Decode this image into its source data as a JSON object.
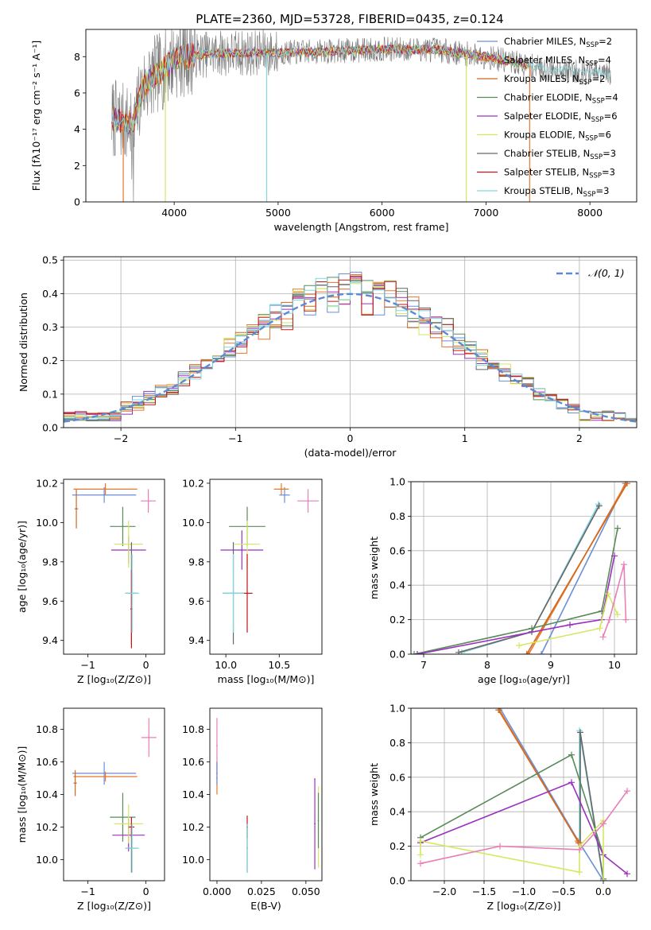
{
  "title": "PLATE=2360, MJD=53728, FIBERID=0435, z=0.124",
  "colors": {
    "chabrier_miles": "#6a8ed8",
    "salpeter_miles": "#e8762b",
    "kroupa_miles": "#d2691e",
    "chabrier_elodie": "#5a8a5a",
    "salpeter_elodie": "#9b30c0",
    "kroupa_elodie": "#d4e860",
    "chabrier_stelib": "#666666",
    "salpeter_stelib": "#c01818",
    "kroupa_stelib": "#7fd7df",
    "pink": "#e87fb8",
    "normal_curve": "#5b8ad6"
  },
  "chart_data": [
    {
      "id": "spectrum",
      "type": "line",
      "xlabel": "wavelength [Angstrom, rest frame]",
      "ylabel": "Flux [fλ10⁻¹⁷ erg cm⁻² s⁻¹ A⁻¹]",
      "xlim": [
        3150,
        8450
      ],
      "ylim": [
        0,
        9.5
      ],
      "xticks": [
        "4000",
        "5000",
        "6000",
        "7000",
        "8000"
      ],
      "yticks": [
        "0",
        "2",
        "4",
        "6",
        "8"
      ],
      "legend_position": "top-right",
      "legend": [
        "Chabrier MILES, N_SSP=2",
        "Salpeter MILES, N_SSP=4",
        "Kroupa MILES, N_SSP=2",
        "Chabrier ELODIE, N_SSP=4",
        "Salpeter ELODIE, N_SSP=6",
        "Kroupa ELODIE, N_SSP=6",
        "Chabrier STELIB, N_SSP=3",
        "Salpeter STELIB, N_SSP=3",
        "Kroupa STELIB, N_SSP=3"
      ],
      "continuum": {
        "x": [
          3400,
          3500,
          3600,
          3700,
          3800,
          3900,
          4000,
          4200,
          4500,
          5000,
          5500,
          6000,
          6500,
          7000,
          7500,
          8000,
          8200
        ],
        "y": [
          4.6,
          4.4,
          4.3,
          6.3,
          6.9,
          7.3,
          7.9,
          8.1,
          8.2,
          8.2,
          8.3,
          8.4,
          8.4,
          8.0,
          7.4,
          7.1,
          7.0
        ]
      }
    },
    {
      "id": "residuals",
      "type": "histogram",
      "xlabel": "(data-model)/error",
      "ylabel": "Normed distribution",
      "xlim": [
        -2.5,
        2.5
      ],
      "ylim": [
        0,
        0.51
      ],
      "xticks": [
        "−2",
        "−1",
        "0",
        "1",
        "2"
      ],
      "yticks": [
        "0.0",
        "0.1",
        "0.2",
        "0.3",
        "0.4",
        "0.5"
      ],
      "bin_width": 0.1,
      "legend": "𝒩(0, 1)",
      "legend_position": "top-right",
      "grid": true
    },
    {
      "id": "age_vs_Z",
      "type": "scatter",
      "xlabel": "Z [log₁₀(Z/Z⊙)]",
      "ylabel": "age  [log₁₀(age/yr)]",
      "xlim": [
        -1.42,
        0.32
      ],
      "ylim": [
        9.33,
        10.22
      ],
      "xticks": [
        "−1",
        "0"
      ],
      "yticks": [
        "9.4",
        "9.6",
        "9.8",
        "10.0",
        "10.2"
      ],
      "points": [
        {
          "c": "chabrier_miles",
          "x": -0.72,
          "y": 10.14,
          "dx": 0.55,
          "dy": 0.04
        },
        {
          "c": "salpeter_miles",
          "x": -0.7,
          "y": 10.17,
          "dx": 0.55,
          "dy": 0.03
        },
        {
          "c": "kroupa_miles",
          "x": -1.2,
          "y": 10.07,
          "dx": 0.03,
          "dy": 0.1
        },
        {
          "c": "chabrier_elodie",
          "x": -0.4,
          "y": 9.98,
          "dx": 0.22,
          "dy": 0.1
        },
        {
          "c": "salpeter_elodie",
          "x": -0.3,
          "y": 9.86,
          "dx": 0.3,
          "dy": 0.07
        },
        {
          "c": "kroupa_elodie",
          "x": -0.3,
          "y": 9.89,
          "dx": 0.25,
          "dy": 0.12
        },
        {
          "c": "chabrier_stelib",
          "x": -0.25,
          "y": 9.64,
          "dx": 0.1,
          "dy": 0.26
        },
        {
          "c": "salpeter_stelib",
          "x": -0.25,
          "y": 9.56,
          "dx": 0.02,
          "dy": 0.2
        },
        {
          "c": "kroupa_stelib",
          "x": -0.24,
          "y": 9.64,
          "dx": 0.12,
          "dy": 0.2
        },
        {
          "c": "pink",
          "x": 0.04,
          "y": 10.11,
          "dx": 0.13,
          "dy": 0.06
        }
      ]
    },
    {
      "id": "age_vs_mass",
      "type": "scatter",
      "xlabel": "mass [log₁₀(M/M⊙)]",
      "ylabel": "",
      "xlim": [
        9.85,
        10.9
      ],
      "ylim": [
        9.33,
        10.22
      ],
      "xticks": [
        "10.0",
        "10.5"
      ],
      "yticks": [
        "9.4",
        "9.6",
        "9.8",
        "10.0",
        "10.2"
      ],
      "points": [
        {
          "c": "chabrier_miles",
          "x": 10.55,
          "y": 10.14,
          "dx": 0.05,
          "dy": 0.04
        },
        {
          "c": "salpeter_miles",
          "x": 10.52,
          "y": 10.17,
          "dx": 0.07,
          "dy": 0.03
        },
        {
          "c": "chabrier_elodie",
          "x": 10.2,
          "y": 9.98,
          "dx": 0.17,
          "dy": 0.1
        },
        {
          "c": "salpeter_elodie",
          "x": 10.15,
          "y": 9.86,
          "dx": 0.2,
          "dy": 0.1
        },
        {
          "c": "kroupa_elodie",
          "x": 10.2,
          "y": 9.89,
          "dx": 0.12,
          "dy": 0.12
        },
        {
          "c": "chabrier_stelib",
          "x": 10.07,
          "y": 9.64,
          "dx": 0.1,
          "dy": 0.26
        },
        {
          "c": "salpeter_stelib",
          "x": 10.2,
          "y": 9.64,
          "dx": 0.05,
          "dy": 0.2
        },
        {
          "c": "kroupa_stelib",
          "x": 10.07,
          "y": 9.64,
          "dx": 0.1,
          "dy": 0.2
        },
        {
          "c": "pink",
          "x": 10.77,
          "y": 10.11,
          "dx": 0.1,
          "dy": 0.06
        }
      ]
    },
    {
      "id": "massweight_vs_age",
      "type": "line",
      "xlabel": "age  [log₁₀(age/yr)]",
      "ylabel": "mass weight",
      "xlim": [
        6.8,
        10.35
      ],
      "ylim": [
        0,
        1
      ],
      "xticks": [
        "7",
        "8",
        "9",
        "10"
      ],
      "yticks": [
        "0.0",
        "0.2",
        "0.4",
        "0.6",
        "0.8",
        "1.0"
      ],
      "grid": true,
      "series": [
        {
          "c": "kroupa_stelib",
          "x": [
            7.6,
            8.7,
            9.75
          ],
          "y": [
            0.01,
            0.13,
            0.87
          ]
        },
        {
          "c": "chabrier_stelib",
          "x": [
            7.55,
            8.7,
            9.76
          ],
          "y": [
            0.01,
            0.13,
            0.86
          ]
        },
        {
          "c": "chabrier_miles",
          "x": [
            8.85,
            10.17
          ],
          "y": [
            0.0,
            0.99
          ]
        },
        {
          "c": "salpeter_miles",
          "x": [
            8.65,
            10.18
          ],
          "y": [
            0.0,
            0.99
          ]
        },
        {
          "c": "kroupa_miles",
          "x": [
            8.62,
            10.2
          ],
          "y": [
            0.0,
            0.99
          ]
        },
        {
          "c": "chabrier_elodie",
          "x": [
            6.85,
            8.7,
            9.8,
            10.05
          ],
          "y": [
            0.0,
            0.15,
            0.25,
            0.73
          ]
        },
        {
          "c": "salpeter_elodie",
          "x": [
            6.9,
            9.3,
            9.8,
            10.0
          ],
          "y": [
            0.0,
            0.17,
            0.2,
            0.57
          ]
        },
        {
          "c": "kroupa_elodie",
          "x": [
            8.5,
            9.77,
            9.9,
            10.05
          ],
          "y": [
            0.05,
            0.15,
            0.35,
            0.23
          ]
        },
        {
          "c": "pink",
          "x": [
            9.82,
            9.92,
            10.15,
            10.18
          ],
          "y": [
            0.1,
            0.2,
            0.52,
            0.2
          ]
        }
      ]
    },
    {
      "id": "mass_vs_Z",
      "type": "scatter",
      "xlabel": "Z [log₁₀(Z/Z⊙)]",
      "ylabel": "mass [log₁₀(M/M⊙)]",
      "xlim": [
        -1.42,
        0.32
      ],
      "ylim": [
        9.87,
        10.93
      ],
      "xticks": [
        "−1",
        "0"
      ],
      "yticks": [
        "10.0",
        "10.2",
        "10.4",
        "10.6",
        "10.8"
      ],
      "points": [
        {
          "c": "chabrier_miles",
          "x": -0.72,
          "y": 10.53,
          "dx": 0.55,
          "dy": 0.07
        },
        {
          "c": "salpeter_miles",
          "x": -0.7,
          "y": 10.51,
          "dx": 0.55,
          "dy": 0.03
        },
        {
          "c": "kroupa_miles",
          "x": -1.22,
          "y": 10.47,
          "dx": 0.03,
          "dy": 0.08
        },
        {
          "c": "chabrier_elodie",
          "x": -0.4,
          "y": 10.26,
          "dx": 0.22,
          "dy": 0.15
        },
        {
          "c": "salpeter_elodie",
          "x": -0.3,
          "y": 10.15,
          "dx": 0.28,
          "dy": 0.1
        },
        {
          "c": "kroupa_elodie",
          "x": -0.3,
          "y": 10.22,
          "dx": 0.25,
          "dy": 0.12
        },
        {
          "c": "chabrier_stelib",
          "x": -0.25,
          "y": 10.07,
          "dx": 0.1,
          "dy": 0.15
        },
        {
          "c": "salpeter_stelib",
          "x": -0.25,
          "y": 10.2,
          "dx": 0.05,
          "dy": 0.06
        },
        {
          "c": "kroupa_stelib",
          "x": -0.24,
          "y": 10.07,
          "dx": 0.12,
          "dy": 0.15
        },
        {
          "c": "pink",
          "x": 0.05,
          "y": 10.75,
          "dx": 0.13,
          "dy": 0.12
        }
      ]
    },
    {
      "id": "mass_vs_EBV",
      "type": "scatter",
      "xlabel": "E(B-V)",
      "ylabel": "",
      "xlim": [
        -0.004,
        0.059
      ],
      "ylim": [
        9.87,
        10.93
      ],
      "xticks": [
        "0.000",
        "0.025",
        "0.050"
      ],
      "yticks": [
        "10.0",
        "10.2",
        "10.4",
        "10.6",
        "10.8"
      ],
      "points": [
        {
          "c": "pink",
          "x": 0.0,
          "y": 10.7,
          "dx": 0.0,
          "dy": 0.17
        },
        {
          "c": "salpeter_miles",
          "x": 0.0,
          "y": 10.5,
          "dx": 0.0,
          "dy": 0.1
        },
        {
          "c": "chabrier_miles",
          "x": 0.0,
          "y": 10.53,
          "dx": 0.0,
          "dy": 0.07
        },
        {
          "c": "salpeter_stelib",
          "x": 0.017,
          "y": 10.2,
          "dx": 0.0,
          "dy": 0.07
        },
        {
          "c": "chabrier_stelib",
          "x": 0.017,
          "y": 10.07,
          "dx": 0.0,
          "dy": 0.15
        },
        {
          "c": "kroupa_stelib",
          "x": 0.017,
          "y": 10.07,
          "dx": 0.0,
          "dy": 0.15
        },
        {
          "c": "salpeter_elodie",
          "x": 0.055,
          "y": 10.22,
          "dx": 0.0,
          "dy": 0.28
        },
        {
          "c": "kroupa_elodie",
          "x": 0.057,
          "y": 10.2,
          "dx": 0.0,
          "dy": 0.25
        },
        {
          "c": "chabrier_elodie",
          "x": 0.057,
          "y": 10.24,
          "dx": 0.0,
          "dy": 0.17
        }
      ]
    },
    {
      "id": "massweight_vs_Z",
      "type": "line",
      "xlabel": "Z [log₁₀(Z/Z⊙)]",
      "ylabel": "mass weight",
      "xlim": [
        -2.42,
        0.42
      ],
      "ylim": [
        0,
        1
      ],
      "xticks": [
        "−2.0",
        "−1.5",
        "−1.0",
        "−0.5",
        "0.0"
      ],
      "yticks": [
        "0.0",
        "0.2",
        "0.4",
        "0.6",
        "0.8",
        "1.0"
      ],
      "grid": true,
      "series": [
        {
          "c": "kroupa_stelib",
          "x": [
            -0.3,
            -0.3,
            0.0
          ],
          "y": [
            0.22,
            0.87,
            0.0
          ]
        },
        {
          "c": "chabrier_stelib",
          "x": [
            -0.29,
            -0.29,
            0.0
          ],
          "y": [
            0.22,
            0.86,
            0.01
          ]
        },
        {
          "c": "chabrier_miles",
          "x": [
            -1.3,
            -0.3,
            0.0
          ],
          "y": [
            1.0,
            0.22,
            0.0
          ]
        },
        {
          "c": "salpeter_miles",
          "x": [
            -1.32,
            -0.32
          ],
          "y": [
            0.99,
            0.23
          ]
        },
        {
          "c": "kroupa_miles",
          "x": [
            -1.31,
            -0.31
          ],
          "y": [
            0.99,
            0.22
          ]
        },
        {
          "c": "chabrier_elodie",
          "x": [
            -2.3,
            -0.4,
            0.0,
            0.0
          ],
          "y": [
            0.25,
            0.73,
            0.15,
            0.0
          ]
        },
        {
          "c": "salpeter_elodie",
          "x": [
            -2.3,
            -0.4,
            0.0,
            0.3
          ],
          "y": [
            0.22,
            0.57,
            0.15,
            0.04
          ]
        },
        {
          "c": "kroupa_elodie",
          "x": [
            -2.3,
            -2.3,
            -0.3,
            -0.3,
            0.0,
            0.0
          ],
          "y": [
            0.15,
            0.23,
            0.05,
            0.2,
            0.35,
            0.0
          ]
        },
        {
          "c": "pink",
          "x": [
            -2.3,
            -1.3,
            -0.3,
            0.0,
            0.3
          ],
          "y": [
            0.1,
            0.2,
            0.18,
            0.33,
            0.52
          ]
        }
      ]
    }
  ]
}
